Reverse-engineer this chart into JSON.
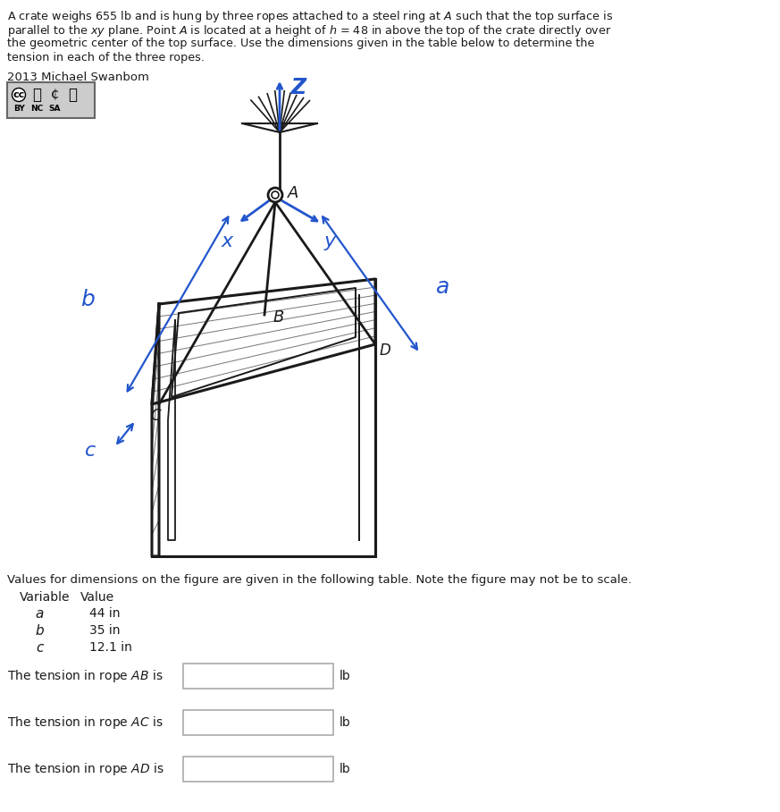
{
  "bg_color": "#ffffff",
  "text_color_black": "#1a1a1a",
  "text_color_blue": "#2255cc",
  "title_lines": [
    "A crate weighs 655 lb and is hung by three ropes attached to a steel ring at $\\mathit{A}$ such that the top surface is",
    "parallel to the $\\mathit{xy}$ plane. Point $\\mathit{A}$ is located at a height of $\\mathit{h}$ = 48 in above the top of the crate directly over",
    "the geometric center of the top surface. Use the dimensions given in the table below to determine the",
    "tension in each of the three ropes."
  ],
  "copyright": "2013 Michael Swanbom",
  "table_note": "Values for dimensions on the figure are given in the following table. Note the figure may not be to scale.",
  "var_header": "Variable",
  "val_header": "Value",
  "rows": [
    [
      "a",
      "44 in"
    ],
    [
      "b",
      "35 in"
    ],
    [
      "c",
      "12.1 in"
    ]
  ],
  "tension_lines": [
    [
      "The tension in rope ",
      "AB",
      " is"
    ],
    [
      "The tension in rope ",
      "AC",
      " is"
    ],
    [
      "The tension in rope ",
      "AD",
      " is"
    ]
  ],
  "unit": "lb",
  "label_Z": "Z",
  "label_A": "A",
  "label_B": "B",
  "label_C": "C",
  "label_D": "D",
  "label_x": "x",
  "label_y": "y",
  "label_a": "a",
  "label_b": "b",
  "label_c": "c",
  "fig_scale": 1.0
}
